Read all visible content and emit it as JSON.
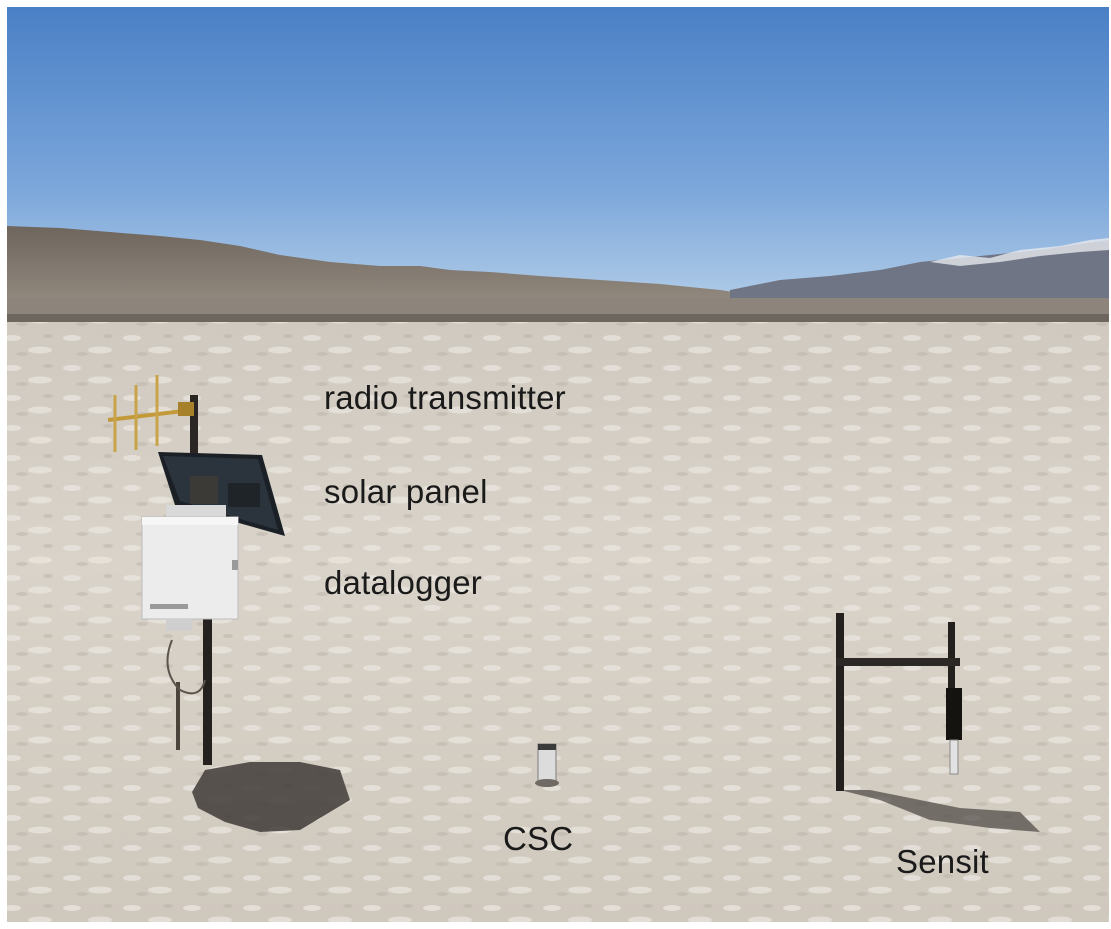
{
  "photo": {
    "labels": {
      "radio_transmitter": "radio transmitter",
      "solar_panel": "solar panel",
      "datalogger": "datalogger",
      "csc": "CSC",
      "sensit": "Sensit"
    },
    "colors": {
      "sky_top": "#4d84c8",
      "sky_bottom": "#a9c7e6",
      "ground": "#d8d2c8",
      "mountains": "#7a7066",
      "label_text": "#1a1a1a"
    }
  }
}
